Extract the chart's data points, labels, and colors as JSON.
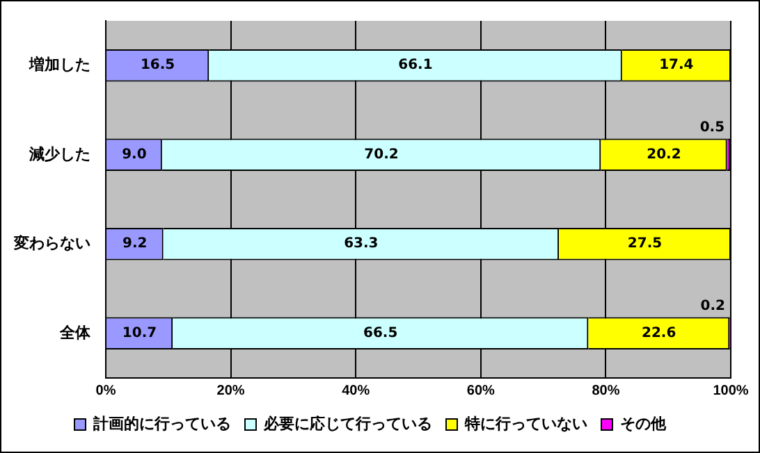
{
  "chart_data": {
    "type": "bar",
    "orientation": "horizontal",
    "stacked": true,
    "categories": [
      "増加した",
      "減少した",
      "変わらない",
      "全体"
    ],
    "series": [
      {
        "name": "計画的に行っている",
        "color": "#9999ff",
        "values": [
          16.5,
          9.0,
          9.2,
          10.7
        ],
        "value_labels": [
          "16.5",
          "9.0",
          "9.2",
          "10.7"
        ]
      },
      {
        "name": "必要に応じて行っている",
        "color": "#ccffff",
        "values": [
          66.1,
          70.2,
          63.3,
          66.5
        ],
        "value_labels": [
          "66.1",
          "70.2",
          "63.3",
          "66.5"
        ]
      },
      {
        "name": "特に行っていない",
        "color": "#ffff00",
        "values": [
          17.4,
          20.2,
          27.5,
          22.6
        ],
        "value_labels": [
          "17.4",
          "20.2",
          "27.5",
          "22.6"
        ]
      },
      {
        "name": "その他",
        "color": "#ff00ff",
        "values": [
          0,
          0.5,
          0,
          0.2
        ],
        "value_labels": [
          null,
          "0.5",
          null,
          "0.2"
        ]
      }
    ],
    "xlim": [
      0,
      100
    ],
    "xticks": [
      {
        "value": 0,
        "label": "0%"
      },
      {
        "value": 20,
        "label": "20%"
      },
      {
        "value": 40,
        "label": "40%"
      },
      {
        "value": 60,
        "label": "60%"
      },
      {
        "value": 80,
        "label": "80%"
      },
      {
        "value": 100,
        "label": "100%"
      }
    ],
    "grid": "x",
    "legend": "bottom"
  }
}
